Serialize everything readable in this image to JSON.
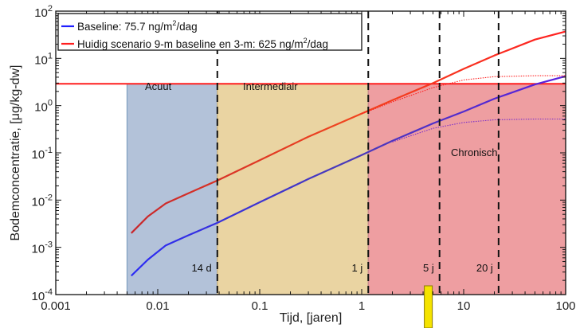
{
  "chart_data": {
    "type": "line",
    "xlabel": "Tijd, [jaren]",
    "ylabel": "Bodemconcentratie, [μg/kg-dw]",
    "xscale": "log",
    "yscale": "log",
    "xlim": [
      0.001,
      100
    ],
    "ylim": [
      0.0001,
      100
    ],
    "x_ticks": [
      {
        "value": 0.001,
        "label": "0.001"
      },
      {
        "value": 0.01,
        "label": "0.01"
      },
      {
        "value": 0.1,
        "label": "0.1"
      },
      {
        "value": 1,
        "label": "1"
      },
      {
        "value": 10,
        "label": "10"
      },
      {
        "value": 100,
        "label": "100"
      }
    ],
    "y_ticks": [
      {
        "value": 0.0001,
        "base": "10",
        "exp": "-4"
      },
      {
        "value": 0.001,
        "base": "10",
        "exp": "-3"
      },
      {
        "value": 0.01,
        "base": "10",
        "exp": "-2"
      },
      {
        "value": 0.1,
        "base": "10",
        "exp": "-1"
      },
      {
        "value": 1,
        "base": "10",
        "exp": "0"
      },
      {
        "value": 10,
        "base": "10",
        "exp": "1"
      },
      {
        "value": 100,
        "base": "10",
        "exp": "2"
      }
    ],
    "legend": {
      "placement": "top-left",
      "entries": [
        {
          "prefix": "Baseline: 75.7 ng/m",
          "sup": "2",
          "suffix": "/dag",
          "color": "#1f1fff"
        },
        {
          "prefix": "Huidig scenario 9-m baseline en 3-m: 625 ng/m",
          "sup": "2",
          "suffix": "/dag",
          "color": "#ff1f1f"
        }
      ]
    },
    "regions": [
      {
        "label": "Acuut",
        "x_from": 0.005,
        "x_to": 0.0384,
        "y_from": 0.0001,
        "y_to": 2.9,
        "color": "#b3c2d9"
      },
      {
        "label": "Intermediair",
        "x_from": 0.0384,
        "x_to": 1.16,
        "y_from": 0.0001,
        "y_to": 2.9,
        "color": "#ead4a2"
      },
      {
        "label": "Chronisch",
        "x_from": 1.16,
        "x_to": 100,
        "y_from": 0.0001,
        "y_to": 2.9,
        "color": "#ee9ea1"
      }
    ],
    "threshold_line": {
      "y": 2.9,
      "color": "#ff1f1f"
    },
    "vlines": [
      {
        "x": 0.0384,
        "label": "14 d"
      },
      {
        "x": 1.16,
        "label": "1 j"
      },
      {
        "x": 5.8,
        "label": "5 j"
      },
      {
        "x": 22,
        "label": "20 j"
      }
    ],
    "marker": {
      "x": 4.5,
      "color": "#f5e300"
    },
    "series": [
      {
        "name": "Baseline: 75.7 ng/m²/dag",
        "color": "#1f1fff",
        "style": "solid",
        "x": [
          0.0055,
          0.008,
          0.012,
          0.02,
          0.0384,
          0.1,
          0.3,
          1.0,
          2.0,
          5.0,
          10,
          20,
          50,
          100
        ],
        "y": [
          0.00025,
          0.00055,
          0.0011,
          0.0018,
          0.0033,
          0.009,
          0.028,
          0.09,
          0.18,
          0.42,
          0.75,
          1.4,
          2.8,
          4.2
        ]
      },
      {
        "name": "Huidig scenario 9-m baseline en 3-m: 625 ng/m²/dag",
        "color": "#ff1f1f",
        "style": "solid",
        "x": [
          0.0055,
          0.008,
          0.012,
          0.02,
          0.0384,
          0.1,
          0.3,
          1.0,
          2.0,
          5.0,
          10,
          20,
          50,
          100
        ],
        "y": [
          0.002,
          0.0045,
          0.0085,
          0.014,
          0.026,
          0.07,
          0.22,
          0.68,
          1.3,
          3.0,
          6.0,
          11.5,
          25,
          37
        ]
      },
      {
        "color": "#7b2fc9",
        "style": "dotted",
        "x": [
          2.0,
          5.0,
          10,
          20,
          50,
          100
        ],
        "y": [
          0.17,
          0.33,
          0.44,
          0.5,
          0.52,
          0.52
        ]
      },
      {
        "color": "#ff1f1f",
        "style": "dotted",
        "x": [
          1.0,
          2.0,
          5.0,
          10,
          20,
          50,
          100
        ],
        "y": [
          0.67,
          1.2,
          2.4,
          3.5,
          4.1,
          4.3,
          4.3
        ]
      }
    ]
  }
}
